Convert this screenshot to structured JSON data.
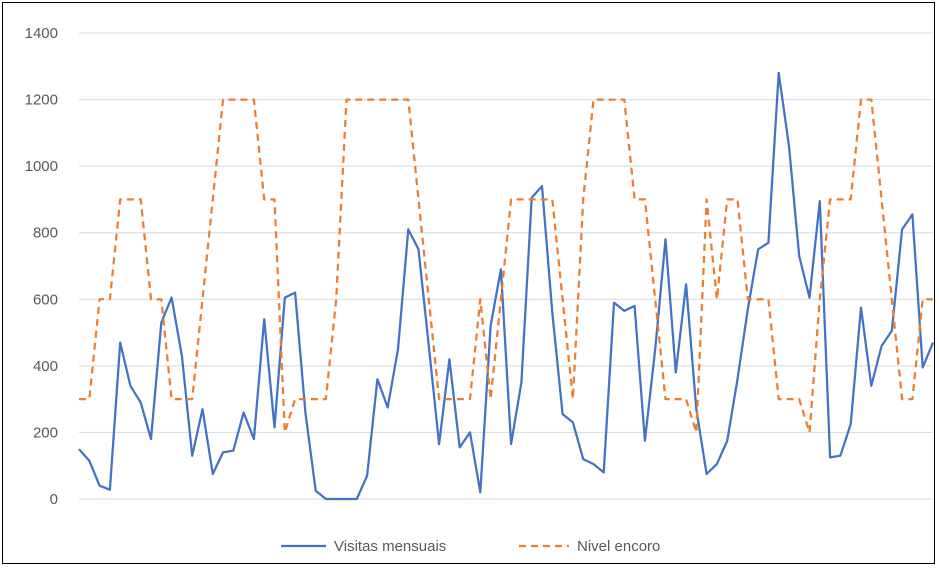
{
  "chart_data": {
    "type": "line",
    "ylim": [
      0,
      1400
    ],
    "yticks": [
      0,
      200,
      400,
      600,
      800,
      1000,
      1200,
      1400
    ],
    "grid": true,
    "legend_position": "bottom",
    "xlabel": "",
    "ylabel": "",
    "series": [
      {
        "name": "Visitas mensuais",
        "color": "#4472c4",
        "style": "solid",
        "values": [
          150,
          115,
          40,
          28,
          470,
          340,
          290,
          180,
          530,
          605,
          430,
          130,
          270,
          75,
          140,
          145,
          260,
          180,
          540,
          215,
          605,
          620,
          260,
          25,
          0,
          0,
          0,
          0,
          70,
          360,
          275,
          450,
          810,
          750,
          460,
          165,
          420,
          155,
          200,
          20,
          520,
          690,
          165,
          350,
          905,
          940,
          560,
          255,
          230,
          120,
          105,
          80,
          590,
          565,
          580,
          175,
          450,
          780,
          380,
          645,
          270,
          75,
          105,
          175,
          360,
          570,
          750,
          770,
          1280,
          1060,
          730,
          605,
          895,
          125,
          130,
          225,
          575,
          340,
          460,
          505,
          810,
          855,
          395,
          470
        ]
      },
      {
        "name": "Nivel encoro",
        "color": "#ed7d31",
        "style": "dashed",
        "values": [
          300,
          300,
          600,
          600,
          900,
          900,
          900,
          600,
          600,
          300,
          300,
          300,
          600,
          900,
          1200,
          1200,
          1200,
          1200,
          900,
          900,
          200,
          300,
          300,
          300,
          300,
          600,
          1200,
          1200,
          1200,
          1200,
          1200,
          1200,
          1200,
          900,
          600,
          300,
          300,
          300,
          300,
          600,
          300,
          600,
          900,
          900,
          900,
          900,
          900,
          600,
          300,
          900,
          1200,
          1200,
          1200,
          1200,
          900,
          900,
          600,
          300,
          300,
          300,
          200,
          900,
          600,
          900,
          900,
          600,
          600,
          600,
          300,
          300,
          300,
          200,
          600,
          900,
          900,
          900,
          1200,
          1200,
          900,
          600,
          300,
          300,
          600,
          600
        ]
      }
    ]
  }
}
